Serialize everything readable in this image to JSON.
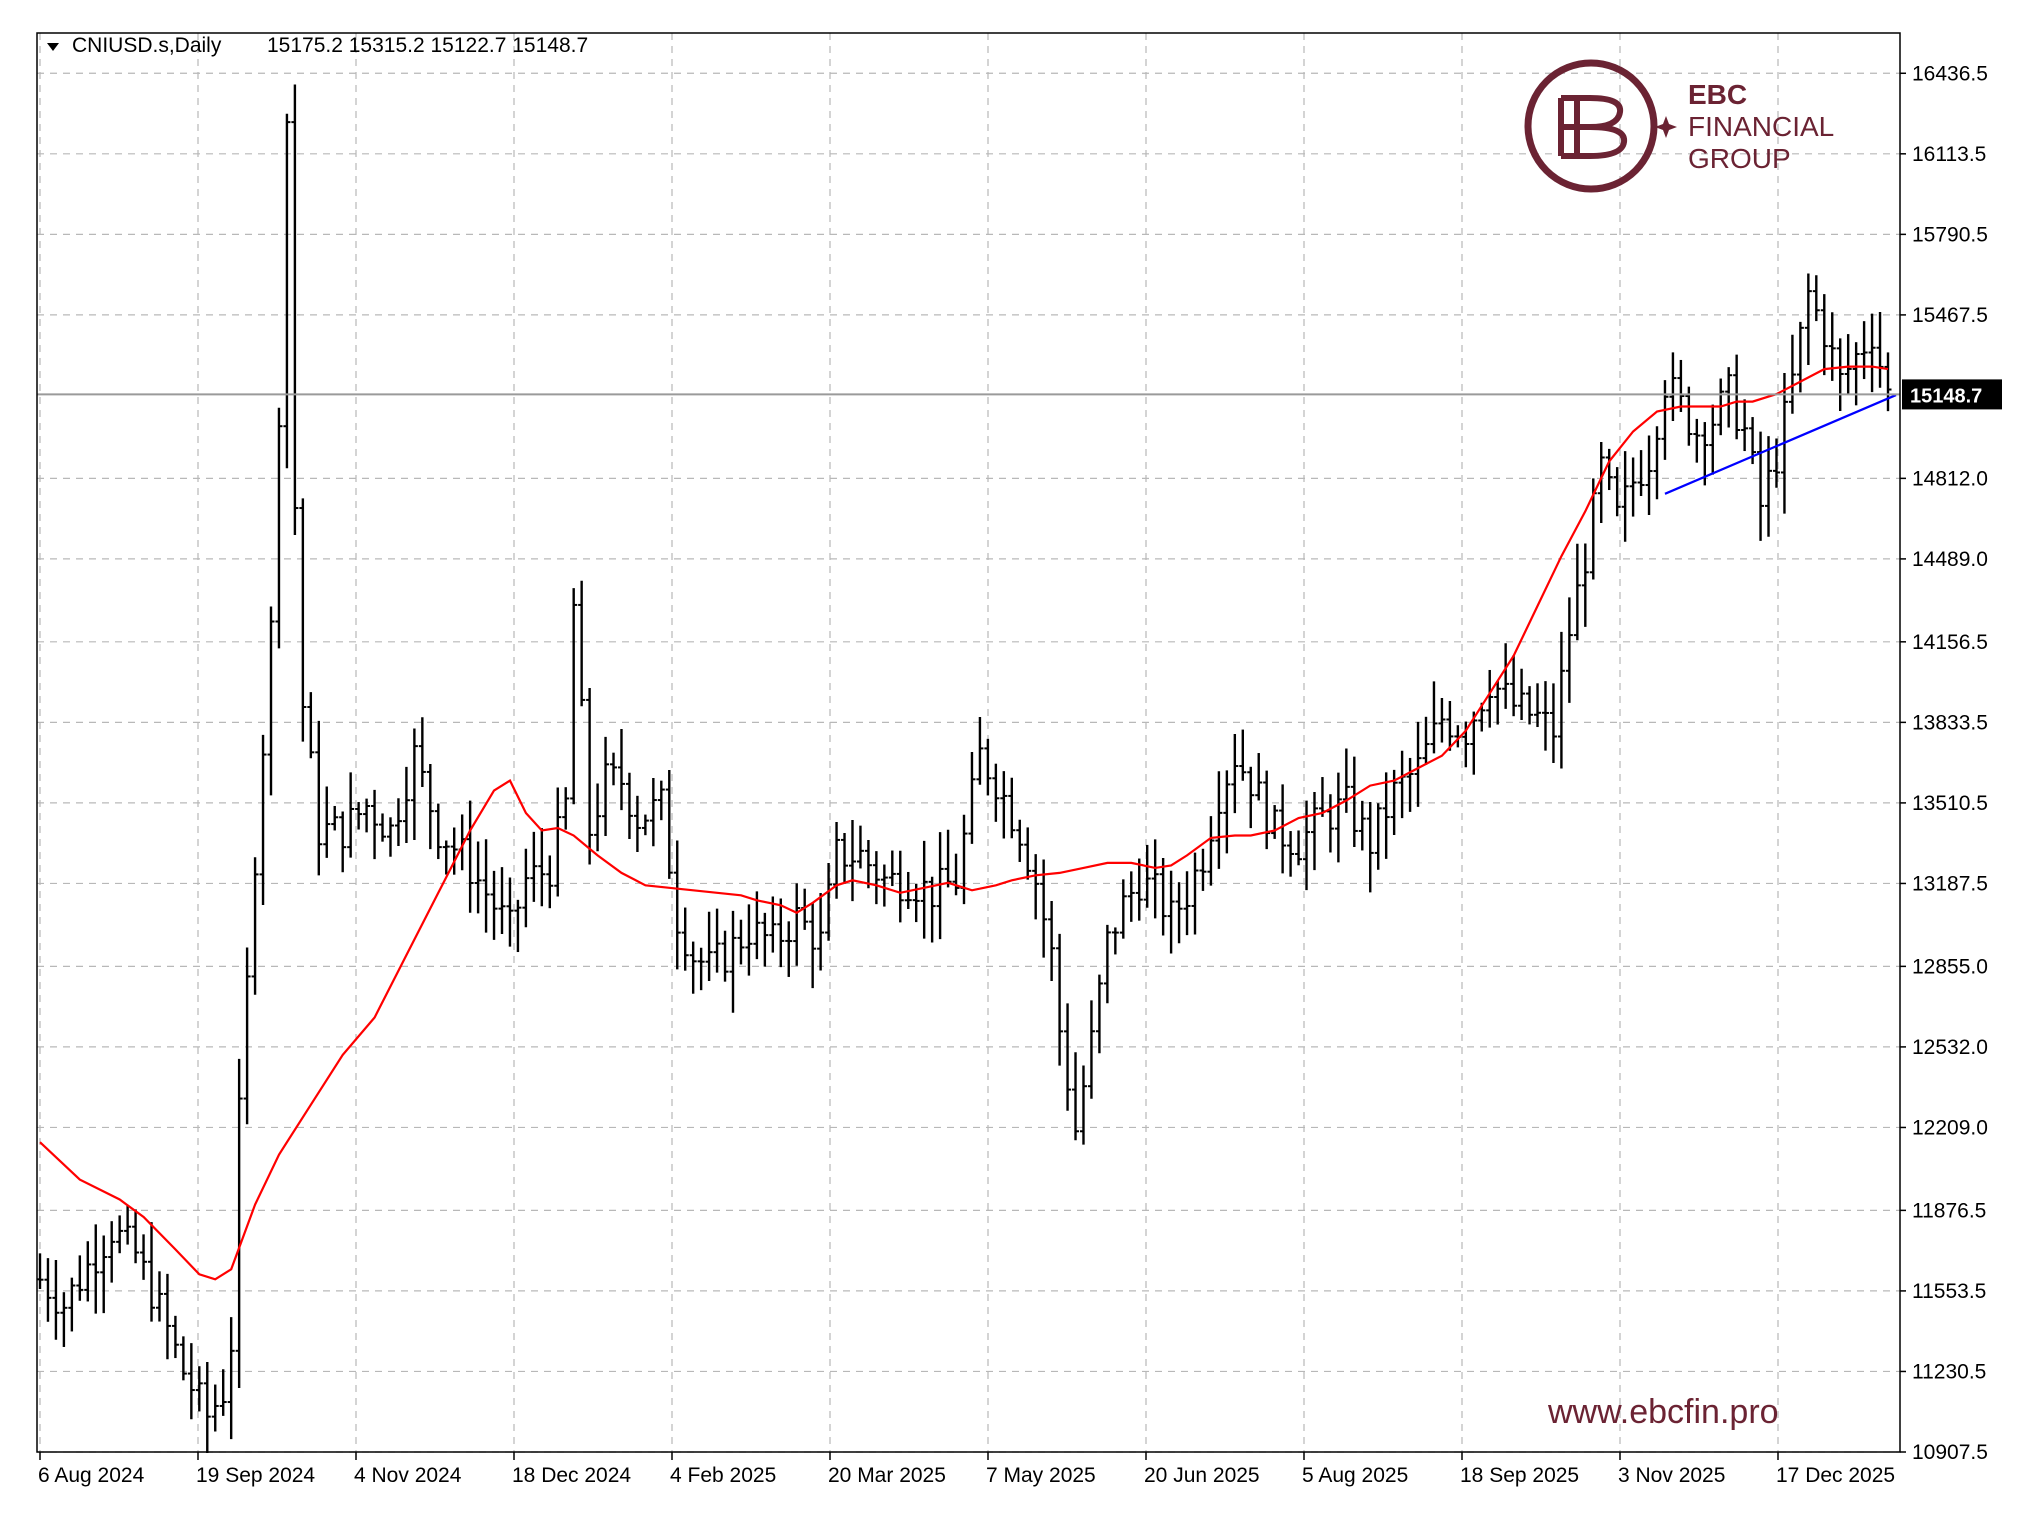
{
  "header": {
    "symbol": "CNIUSD.s,Daily",
    "ohlc": "15175.2 15315.2 15122.7 15148.7"
  },
  "logo": {
    "line1": "EBC",
    "line2": "FINANCIAL",
    "line3": "GROUP",
    "color": "#6b2333"
  },
  "watermark_url": "www.ebcfin.pro",
  "chart_data": {
    "type": "bar",
    "style": "ohlc-bars",
    "series_color": "#000000",
    "moving_average_color": "#ff0000",
    "trendline_color": "#0000ff",
    "grid": true,
    "y_axis_position": "right",
    "ylim": [
      10907.5,
      16598
    ],
    "y_ticks": [
      "16436.5",
      "16113.5",
      "15790.5",
      "15467.5",
      "14812.0",
      "14489.0",
      "14156.5",
      "13833.5",
      "13510.5",
      "13187.5",
      "12855.0",
      "12532.0",
      "12209.0",
      "11876.5",
      "11553.5",
      "11230.5",
      "10907.5"
    ],
    "x_ticks": [
      "6 Aug 2024",
      "19 Sep 2024",
      "4 Nov 2024",
      "18 Dec 2024",
      "4 Feb 2025",
      "20 Mar 2025",
      "7 May 2025",
      "20 Jun 2025",
      "5 Aug 2025",
      "18 Sep 2025",
      "3 Nov 2025",
      "17 Dec 2025"
    ],
    "current_price": "15148.7",
    "current_price_value": 15148.7,
    "bar_count": 233,
    "close_anchors": [
      [
        0,
        11600
      ],
      [
        3,
        11500
      ],
      [
        6,
        11650
      ],
      [
        9,
        11800
      ],
      [
        12,
        11700
      ],
      [
        15,
        11480
      ],
      [
        18,
        11230
      ],
      [
        21,
        11050
      ],
      [
        23,
        11150
      ],
      [
        24,
        11350
      ],
      [
        25,
        12250
      ],
      [
        27,
        13300
      ],
      [
        29,
        14200
      ],
      [
        30,
        15100
      ],
      [
        31,
        16250
      ],
      [
        32,
        14700
      ],
      [
        33,
        13900
      ],
      [
        35,
        13400
      ],
      [
        38,
        13400
      ],
      [
        41,
        13500
      ],
      [
        44,
        13400
      ],
      [
        47,
        13700
      ],
      [
        50,
        13400
      ],
      [
        53,
        13300
      ],
      [
        56,
        13150
      ],
      [
        59,
        13000
      ],
      [
        61,
        13200
      ],
      [
        64,
        13250
      ],
      [
        66,
        13500
      ],
      [
        67,
        14300
      ],
      [
        69,
        13400
      ],
      [
        71,
        13600
      ],
      [
        73,
        13600
      ],
      [
        75,
        13450
      ],
      [
        78,
        13500
      ],
      [
        80,
        13050
      ],
      [
        82,
        12900
      ],
      [
        84,
        12850
      ],
      [
        86,
        12900
      ],
      [
        89,
        13000
      ],
      [
        92,
        12950
      ],
      [
        95,
        13050
      ],
      [
        98,
        12950
      ],
      [
        100,
        13300
      ],
      [
        103,
        13300
      ],
      [
        106,
        13200
      ],
      [
        109,
        13200
      ],
      [
        112,
        13150
      ],
      [
        115,
        13200
      ],
      [
        118,
        13700
      ],
      [
        120,
        13600
      ],
      [
        123,
        13400
      ],
      [
        125,
        13200
      ],
      [
        127,
        12900
      ],
      [
        128,
        12600
      ],
      [
        130,
        12200
      ],
      [
        132,
        12550
      ],
      [
        134,
        12950
      ],
      [
        136,
        13100
      ],
      [
        138,
        13200
      ],
      [
        140,
        13150
      ],
      [
        142,
        13050
      ],
      [
        144,
        13150
      ],
      [
        146,
        13300
      ],
      [
        148,
        13550
      ],
      [
        150,
        13700
      ],
      [
        152,
        13600
      ],
      [
        155,
        13400
      ],
      [
        158,
        13350
      ],
      [
        161,
        13450
      ],
      [
        164,
        13500
      ],
      [
        167,
        13350
      ],
      [
        170,
        13550
      ],
      [
        173,
        13650
      ],
      [
        176,
        13850
      ],
      [
        179,
        13800
      ],
      [
        182,
        14000
      ],
      [
        185,
        13900
      ],
      [
        188,
        13850
      ],
      [
        190,
        13800
      ],
      [
        192,
        14200
      ],
      [
        194,
        14500
      ],
      [
        196,
        14850
      ],
      [
        198,
        14650
      ],
      [
        200,
        14800
      ],
      [
        202,
        14900
      ],
      [
        204,
        15200
      ],
      [
        206,
        15100
      ],
      [
        208,
        15000
      ],
      [
        210,
        15050
      ],
      [
        212,
        15150
      ],
      [
        214,
        15000
      ],
      [
        216,
        14700
      ],
      [
        218,
        14900
      ],
      [
        220,
        15200
      ],
      [
        222,
        15550
      ],
      [
        224,
        15400
      ],
      [
        226,
        15200
      ],
      [
        228,
        15300
      ],
      [
        230,
        15400
      ],
      [
        232,
        15148.7
      ]
    ],
    "moving_average": [
      [
        0,
        12150
      ],
      [
        5,
        12000
      ],
      [
        10,
        11920
      ],
      [
        13,
        11850
      ],
      [
        17,
        11720
      ],
      [
        20,
        11620
      ],
      [
        22,
        11600
      ],
      [
        24,
        11640
      ],
      [
        27,
        11900
      ],
      [
        30,
        12100
      ],
      [
        34,
        12300
      ],
      [
        38,
        12500
      ],
      [
        42,
        12650
      ],
      [
        46,
        12900
      ],
      [
        50,
        13150
      ],
      [
        54,
        13400
      ],
      [
        57,
        13560
      ],
      [
        59,
        13600
      ],
      [
        61,
        13470
      ],
      [
        63,
        13400
      ],
      [
        65,
        13410
      ],
      [
        67,
        13380
      ],
      [
        70,
        13300
      ],
      [
        73,
        13230
      ],
      [
        76,
        13180
      ],
      [
        79,
        13170
      ],
      [
        82,
        13160
      ],
      [
        85,
        13150
      ],
      [
        88,
        13140
      ],
      [
        90,
        13120
      ],
      [
        93,
        13100
      ],
      [
        95,
        13070
      ],
      [
        97,
        13110
      ],
      [
        100,
        13180
      ],
      [
        102,
        13200
      ],
      [
        105,
        13180
      ],
      [
        108,
        13150
      ],
      [
        111,
        13170
      ],
      [
        114,
        13190
      ],
      [
        117,
        13160
      ],
      [
        120,
        13180
      ],
      [
        122,
        13200
      ],
      [
        125,
        13220
      ],
      [
        128,
        13230
      ],
      [
        131,
        13250
      ],
      [
        134,
        13270
      ],
      [
        137,
        13270
      ],
      [
        140,
        13250
      ],
      [
        142,
        13260
      ],
      [
        144,
        13300
      ],
      [
        147,
        13370
      ],
      [
        150,
        13380
      ],
      [
        152,
        13380
      ],
      [
        155,
        13400
      ],
      [
        158,
        13450
      ],
      [
        161,
        13470
      ],
      [
        164,
        13520
      ],
      [
        167,
        13580
      ],
      [
        170,
        13600
      ],
      [
        173,
        13650
      ],
      [
        176,
        13700
      ],
      [
        179,
        13800
      ],
      [
        182,
        13950
      ],
      [
        185,
        14100
      ],
      [
        188,
        14300
      ],
      [
        191,
        14500
      ],
      [
        194,
        14680
      ],
      [
        197,
        14880
      ],
      [
        200,
        15000
      ],
      [
        203,
        15080
      ],
      [
        206,
        15100
      ],
      [
        208,
        15100
      ],
      [
        211,
        15100
      ],
      [
        213,
        15120
      ],
      [
        215,
        15120
      ],
      [
        218,
        15150
      ],
      [
        221,
        15200
      ],
      [
        224,
        15250
      ],
      [
        227,
        15260
      ],
      [
        230,
        15260
      ],
      [
        232,
        15250
      ]
    ],
    "trendline": [
      [
        204,
        14750
      ],
      [
        232,
        15130
      ]
    ]
  }
}
